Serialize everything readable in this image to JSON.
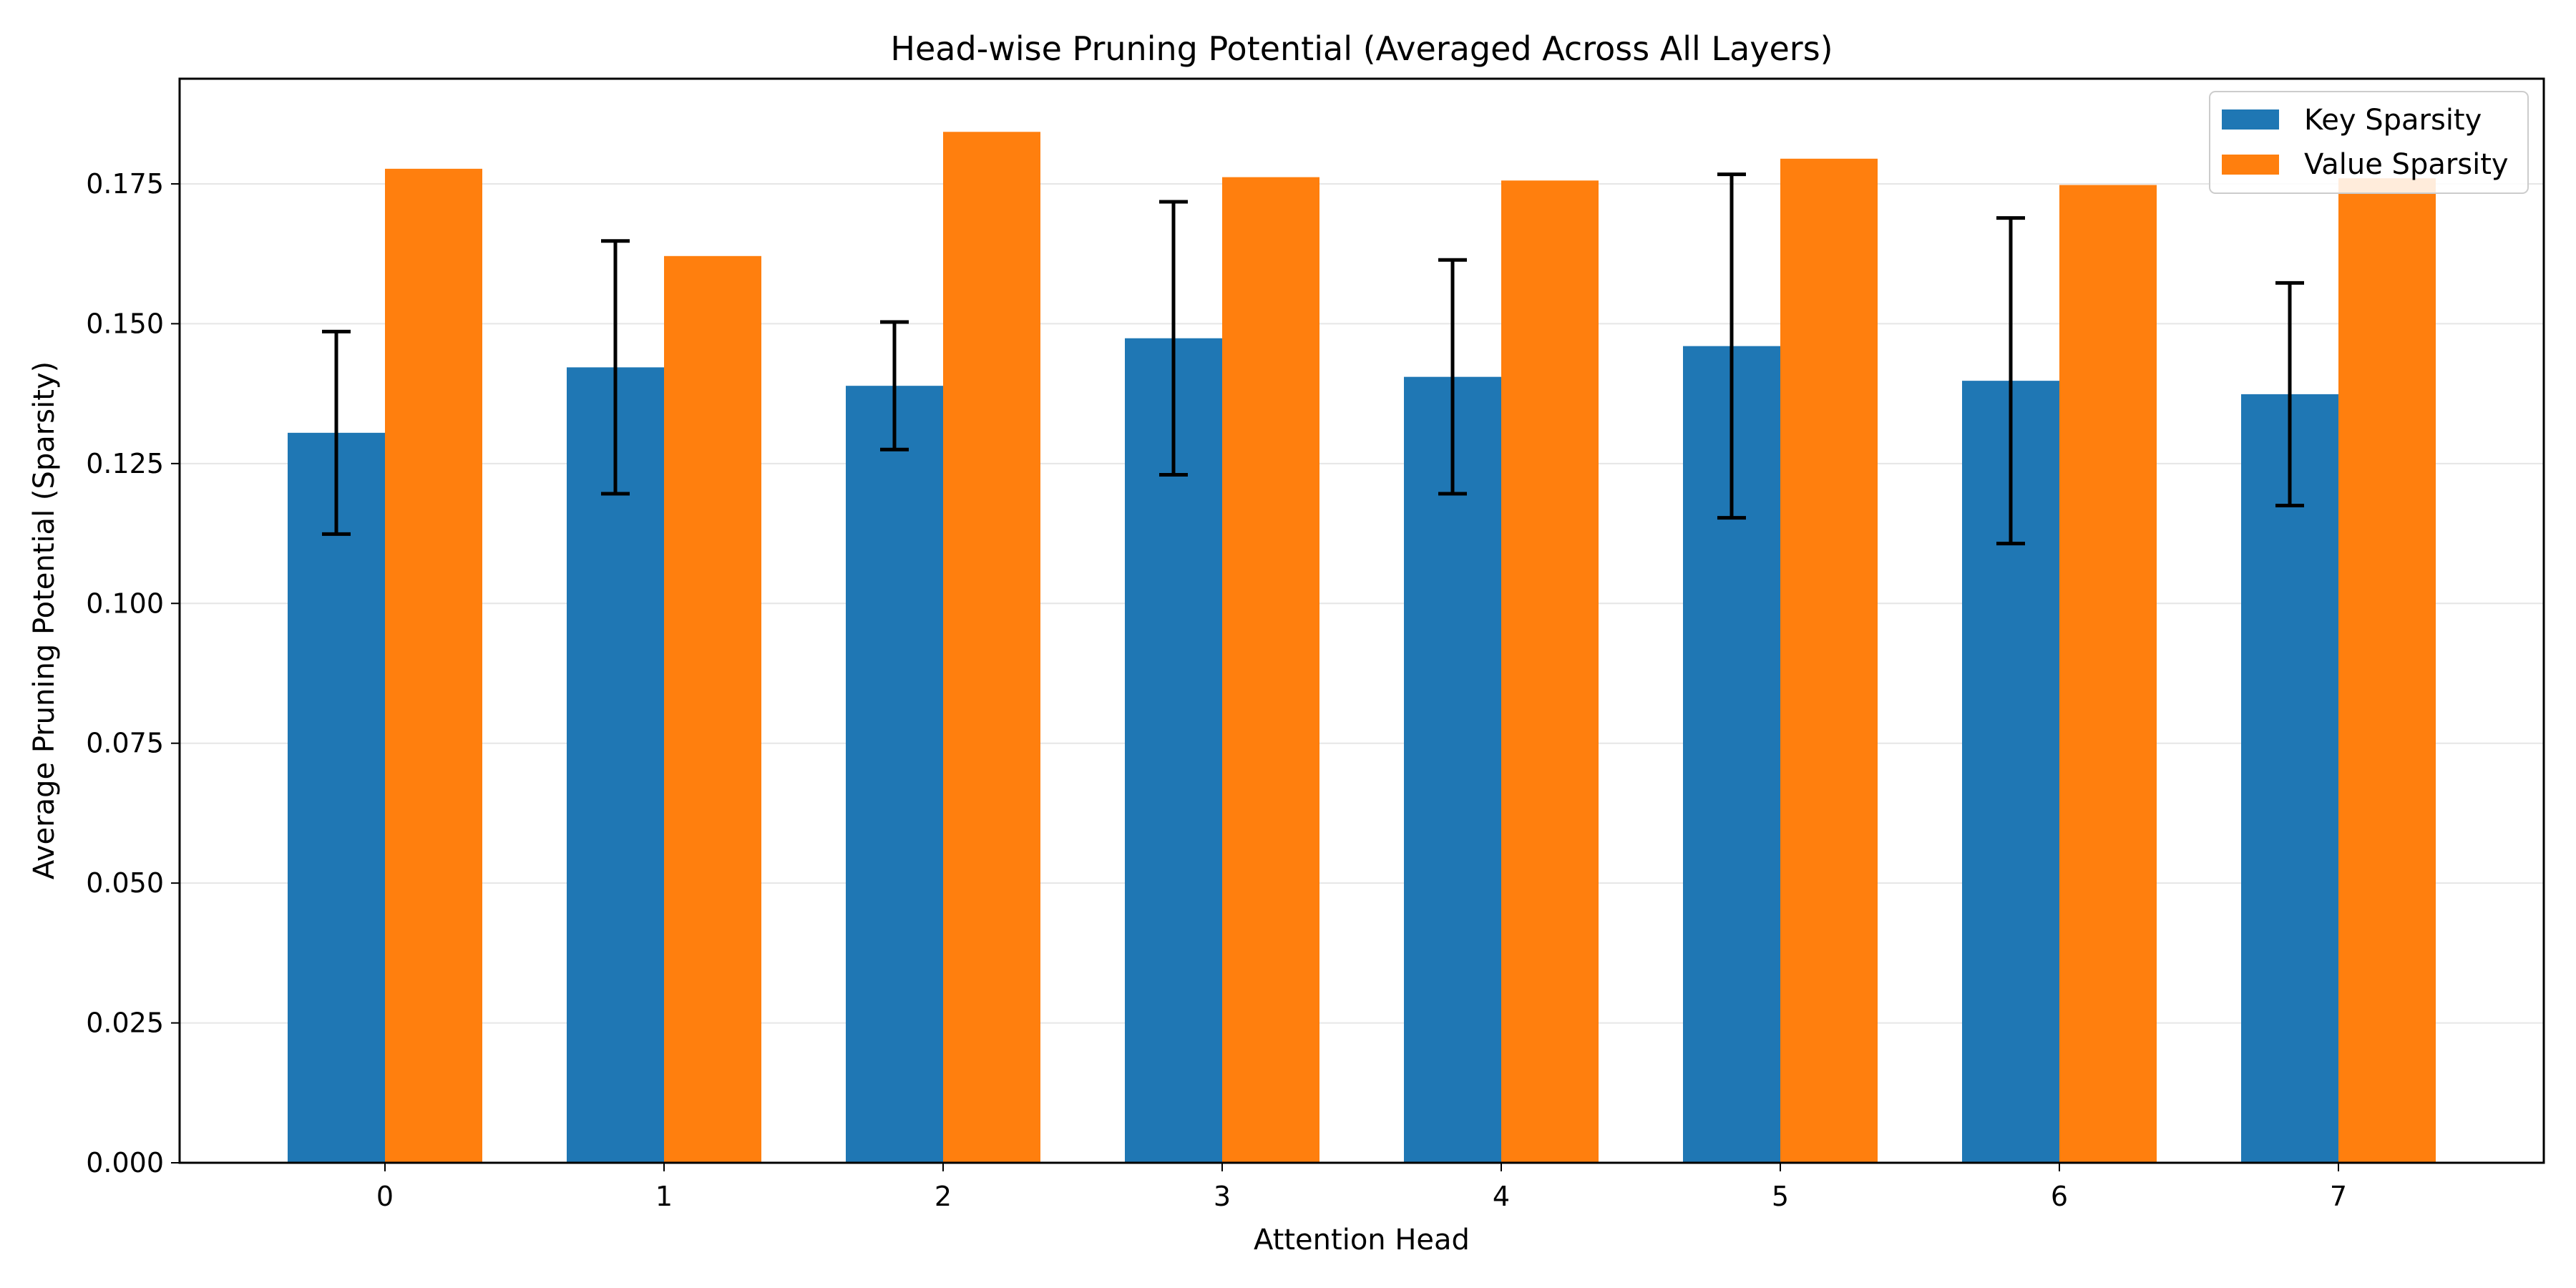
{
  "chart_data": {
    "type": "bar",
    "title": "Head-wise Pruning Potential (Averaged Across All Layers)",
    "xlabel": "Attention Head",
    "ylabel": "Average Pruning Potential (Sparsity)",
    "categories": [
      "0",
      "1",
      "2",
      "3",
      "4",
      "5",
      "6",
      "7"
    ],
    "ylim": [
      0,
      0.1938
    ],
    "yticks": [
      "0.000",
      "0.025",
      "0.050",
      "0.075",
      "0.100",
      "0.125",
      "0.150",
      "0.175"
    ],
    "ytick_values": [
      0,
      0.025,
      0.05,
      0.075,
      0.1,
      0.125,
      0.15,
      0.175
    ],
    "grid": "horizontal",
    "legend_position": "top-right",
    "series": [
      {
        "name": "Key Sparsity",
        "color": "#1f77b4",
        "values": [
          0.1305,
          0.1422,
          0.1389,
          0.1474,
          0.1405,
          0.146,
          0.1398,
          0.1374
        ],
        "error": [
          0.0181,
          0.0226,
          0.0114,
          0.0244,
          0.0209,
          0.0307,
          0.0291,
          0.0199
        ]
      },
      {
        "name": "Value Sparsity",
        "color": "#ff7f0e",
        "values": [
          0.1777,
          0.1621,
          0.1843,
          0.1762,
          0.1756,
          0.1795,
          0.1748,
          0.176
        ]
      }
    ]
  }
}
